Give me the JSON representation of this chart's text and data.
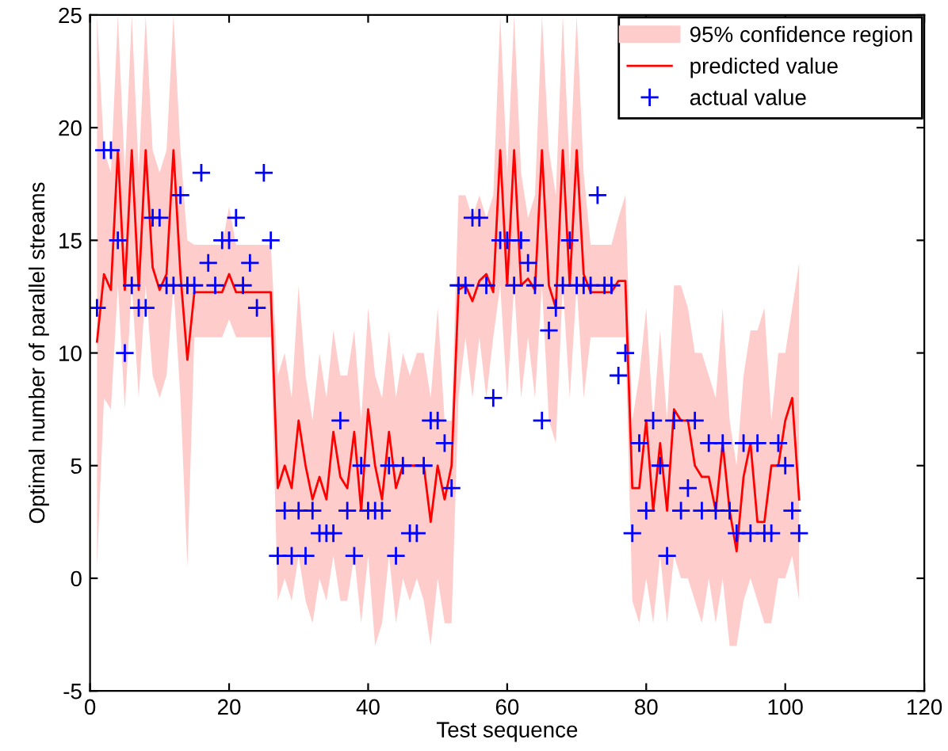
{
  "chart_data": {
    "type": "line",
    "xlabel": "Test sequence",
    "ylabel": "Optimal number of parallel streams",
    "annotations": [
      "95% confidence region"
    ],
    "xlim": [
      0,
      120
    ],
    "ylim": [
      -5,
      25
    ],
    "xticks": [
      0,
      20,
      40,
      60,
      80,
      100,
      120
    ],
    "yticks": [
      -5,
      0,
      5,
      10,
      15,
      20,
      25
    ],
    "grid": false,
    "legend": "top right",
    "x": [
      1,
      2,
      3,
      4,
      5,
      6,
      7,
      8,
      9,
      10,
      11,
      12,
      13,
      14,
      15,
      16,
      17,
      18,
      19,
      20,
      21,
      22,
      23,
      24,
      25,
      26,
      27,
      28,
      29,
      30,
      31,
      32,
      33,
      34,
      35,
      36,
      37,
      38,
      39,
      40,
      41,
      42,
      43,
      44,
      45,
      46,
      47,
      48,
      49,
      50,
      51,
      52,
      53,
      54,
      55,
      56,
      57,
      58,
      59,
      60,
      61,
      62,
      63,
      64,
      65,
      66,
      67,
      68,
      69,
      70,
      71,
      72,
      73,
      74,
      75,
      76,
      77,
      78,
      79,
      80,
      81,
      82,
      83,
      84,
      85,
      86,
      87,
      88,
      89,
      90,
      91,
      92,
      93,
      94,
      95,
      96,
      97,
      98,
      99,
      100,
      101,
      102
    ],
    "series": [
      {
        "name": "predicted value",
        "color": "#ff0000",
        "values": [
          10.5,
          13.5,
          12.8,
          19,
          12.8,
          19,
          12.8,
          19,
          13.8,
          12.8,
          13.5,
          19,
          13.5,
          9.7,
          12.7,
          12.7,
          12.7,
          12.7,
          12.7,
          13.5,
          12.7,
          12.7,
          12.7,
          12.7,
          12.7,
          12.7,
          4,
          5,
          4,
          7,
          5,
          3.5,
          4.5,
          3.5,
          6.5,
          4.5,
          4,
          6.5,
          3,
          7.5,
          5,
          3.5,
          6.5,
          4,
          5,
          5,
          5,
          5,
          2.5,
          5,
          3.5,
          5,
          12.8,
          13,
          12.3,
          13.2,
          13.5,
          12.7,
          19,
          13,
          19,
          13,
          13.3,
          12.8,
          19,
          13,
          12,
          19,
          13,
          19,
          13.5,
          12.7,
          12.7,
          12.7,
          12.7,
          13.2,
          13.2,
          4,
          4,
          7,
          3,
          6,
          3,
          7.5,
          7,
          7,
          5,
          4.5,
          4.5,
          3,
          6,
          3,
          1.2,
          4.5,
          6,
          2.5,
          2.5,
          5,
          5,
          7,
          8,
          3.5
        ],
        "lower": [
          0.5,
          8,
          7.5,
          13,
          7.5,
          13,
          8,
          13,
          9,
          8,
          9,
          13,
          8,
          0.5,
          10.7,
          10.7,
          10.7,
          10.7,
          10.7,
          11.5,
          10.7,
          10.7,
          10.7,
          10.7,
          10.7,
          10.7,
          -1,
          0,
          -1,
          1,
          -1,
          -2,
          0,
          -1,
          1,
          -1,
          -1,
          1,
          -2,
          1,
          -3,
          -2,
          1,
          -2,
          0,
          -1,
          0,
          -1,
          -3,
          0,
          -2,
          -2,
          8,
          10.7,
          8,
          10.7,
          8,
          10.7,
          13,
          8,
          13,
          8,
          10.7,
          8,
          13,
          7,
          6,
          13,
          8,
          13,
          8,
          10.7,
          10.7,
          10.7,
          10.7,
          10.7,
          10.7,
          -1,
          -2,
          0,
          -2,
          1,
          -2,
          1,
          0,
          0,
          -1,
          -2,
          0,
          -2,
          0,
          -3,
          -3,
          -1,
          0,
          -1,
          -2,
          -2,
          0,
          0,
          1,
          -1
        ],
        "upper": [
          25,
          19,
          18,
          25,
          18,
          25,
          18,
          25,
          19,
          18,
          19,
          25,
          19,
          15,
          14.8,
          14.8,
          14.8,
          14.8,
          14.8,
          16.5,
          14.8,
          14.8,
          14.8,
          14.8,
          14.8,
          14.8,
          9,
          10,
          8,
          13,
          9,
          7,
          10,
          8,
          11,
          9,
          9,
          11,
          7,
          12,
          9,
          8,
          11,
          8,
          10,
          9,
          10,
          10,
          8,
          12,
          7,
          7,
          17,
          17,
          16,
          17,
          16,
          17,
          25,
          18,
          25,
          18,
          16,
          17,
          25,
          19,
          17,
          25,
          18,
          25,
          18,
          14.8,
          14.8,
          14.8,
          14.8,
          16,
          17,
          7,
          9,
          12,
          7,
          11,
          7,
          13,
          13,
          12,
          10,
          10,
          9,
          8,
          12,
          7,
          5,
          9,
          11,
          11,
          12,
          7,
          10,
          10,
          12,
          14
        ]
      },
      {
        "name": "actual value",
        "type": "scatter",
        "color": "#0000ff",
        "marker": "cross",
        "values": [
          12,
          19,
          19,
          15,
          10,
          13,
          12,
          12,
          16,
          16,
          13,
          13,
          17,
          13,
          13,
          18,
          14,
          13,
          15,
          15,
          16,
          13,
          14,
          12,
          18,
          15,
          1,
          3,
          1,
          3,
          1,
          3,
          2,
          2,
          2,
          7,
          3,
          1,
          5,
          3,
          3,
          3,
          5,
          1,
          5,
          2,
          2,
          5,
          7,
          7,
          6,
          4,
          13,
          13,
          16,
          16,
          13,
          8,
          15,
          15,
          13,
          15,
          14,
          13,
          7,
          11,
          12,
          13,
          15,
          13,
          13,
          13,
          17,
          13,
          13,
          9,
          10,
          2,
          6,
          3,
          7,
          5,
          1,
          7,
          3,
          4,
          7,
          3,
          6,
          3,
          6,
          3,
          2,
          6,
          2,
          6,
          2,
          2,
          6,
          5,
          3,
          2
        ]
      }
    ]
  }
}
